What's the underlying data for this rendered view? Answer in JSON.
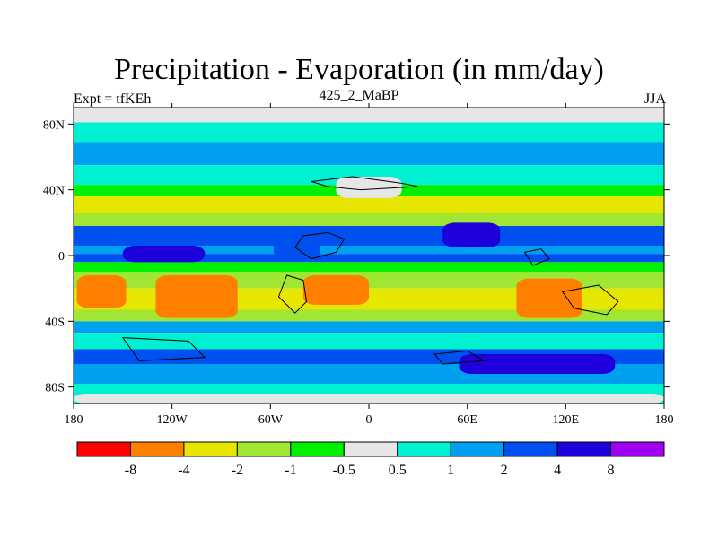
{
  "header": {
    "title": "Precipitation - Evaporation (in mm/day)",
    "left": "Expt = tfKEh",
    "center": "425_2_MaBP",
    "right": "JJA"
  },
  "chart_data": {
    "type": "heatmap",
    "title": "Precipitation - Evaporation (in mm/day)",
    "xlabel": "",
    "ylabel": "",
    "xlim": [
      -180,
      180
    ],
    "ylim": [
      -90,
      90
    ],
    "x_ticks": [
      {
        "value": -180,
        "label": "180"
      },
      {
        "value": -120,
        "label": "120W"
      },
      {
        "value": -60,
        "label": "60W"
      },
      {
        "value": 0,
        "label": "0"
      },
      {
        "value": 60,
        "label": "60E"
      },
      {
        "value": 120,
        "label": "120E"
      },
      {
        "value": 180,
        "label": "180"
      }
    ],
    "y_ticks": [
      {
        "value": 80,
        "label": "80N"
      },
      {
        "value": 40,
        "label": "40N"
      },
      {
        "value": 0,
        "label": "0"
      },
      {
        "value": -40,
        "label": "40S"
      },
      {
        "value": -80,
        "label": "80S"
      }
    ],
    "colorbar": {
      "levels": [
        {
          "value": -8,
          "label": "-8"
        },
        {
          "value": -4,
          "label": "-4"
        },
        {
          "value": -2,
          "label": "-2"
        },
        {
          "value": -1,
          "label": "-1"
        },
        {
          "value": -0.5,
          "label": "-0.5"
        },
        {
          "value": 0.5,
          "label": "0.5"
        },
        {
          "value": 1,
          "label": "1"
        },
        {
          "value": 2,
          "label": "2"
        },
        {
          "value": 4,
          "label": "4"
        },
        {
          "value": 8,
          "label": "8"
        }
      ],
      "colors": [
        "#ff0000",
        "#ff8000",
        "#e6e600",
        "#a0e632",
        "#00f000",
        "#e6e6e6",
        "#00f0d2",
        "#00a0f0",
        "#0050f0",
        "#1e00dc",
        "#a000f0"
      ]
    },
    "bands": [
      {
        "lat": [
          81,
          90
        ],
        "value": 0.0
      },
      {
        "lat": [
          69,
          81
        ],
        "value": 0.75
      },
      {
        "lat": [
          55,
          69
        ],
        "value": 1.5
      },
      {
        "lat": [
          43,
          55
        ],
        "value": 0.75
      },
      {
        "lat": [
          36,
          43
        ],
        "value": -0.75
      },
      {
        "lat": [
          26,
          36
        ],
        "value": -3.0
      },
      {
        "lat": [
          18,
          26
        ],
        "value": -1.5
      },
      {
        "lat": [
          6,
          18
        ],
        "value": 3.0
      },
      {
        "lat": [
          1,
          6
        ],
        "value": 1.5
      },
      {
        "lat": [
          -4,
          1
        ],
        "value": 3.0
      },
      {
        "lat": [
          -10,
          -4
        ],
        "value": -0.75
      },
      {
        "lat": [
          -20,
          -10
        ],
        "value": -1.5
      },
      {
        "lat": [
          -33,
          -20
        ],
        "value": -3.0
      },
      {
        "lat": [
          -40,
          -33
        ],
        "value": -1.5
      },
      {
        "lat": [
          -47,
          -40
        ],
        "value": 1.5
      },
      {
        "lat": [
          -57,
          -47
        ],
        "value": 0.75
      },
      {
        "lat": [
          -66,
          -57
        ],
        "value": 3.0
      },
      {
        "lat": [
          -78,
          -66
        ],
        "value": 1.5
      },
      {
        "lat": [
          -90,
          -78
        ],
        "value": 0.75
      }
    ],
    "patches": [
      {
        "lon": [
          -130,
          -80
        ],
        "lat": [
          -38,
          -12
        ],
        "value": -6.0
      },
      {
        "lon": [
          -178,
          -148
        ],
        "lat": [
          -32,
          -12
        ],
        "value": -6.0
      },
      {
        "lon": [
          -58,
          -30
        ],
        "lat": [
          -2,
          12
        ],
        "value": 3.0
      },
      {
        "lon": [
          45,
          80
        ],
        "lat": [
          5,
          20
        ],
        "value": 6.0
      },
      {
        "lon": [
          -150,
          -100
        ],
        "lat": [
          -4,
          6
        ],
        "value": 6.0
      },
      {
        "lon": [
          90,
          130
        ],
        "lat": [
          -38,
          -14
        ],
        "value": -6.0
      },
      {
        "lon": [
          -40,
          0
        ],
        "lat": [
          -30,
          -12
        ],
        "value": -6.0
      },
      {
        "lon": [
          -20,
          20
        ],
        "lat": [
          35,
          48
        ],
        "value": 0.0
      },
      {
        "lon": [
          55,
          150
        ],
        "lat": [
          -72,
          -60
        ],
        "value": 6.0
      },
      {
        "lon": [
          -180,
          180
        ],
        "lat": [
          -90,
          -84
        ],
        "value": 0.0
      }
    ]
  }
}
